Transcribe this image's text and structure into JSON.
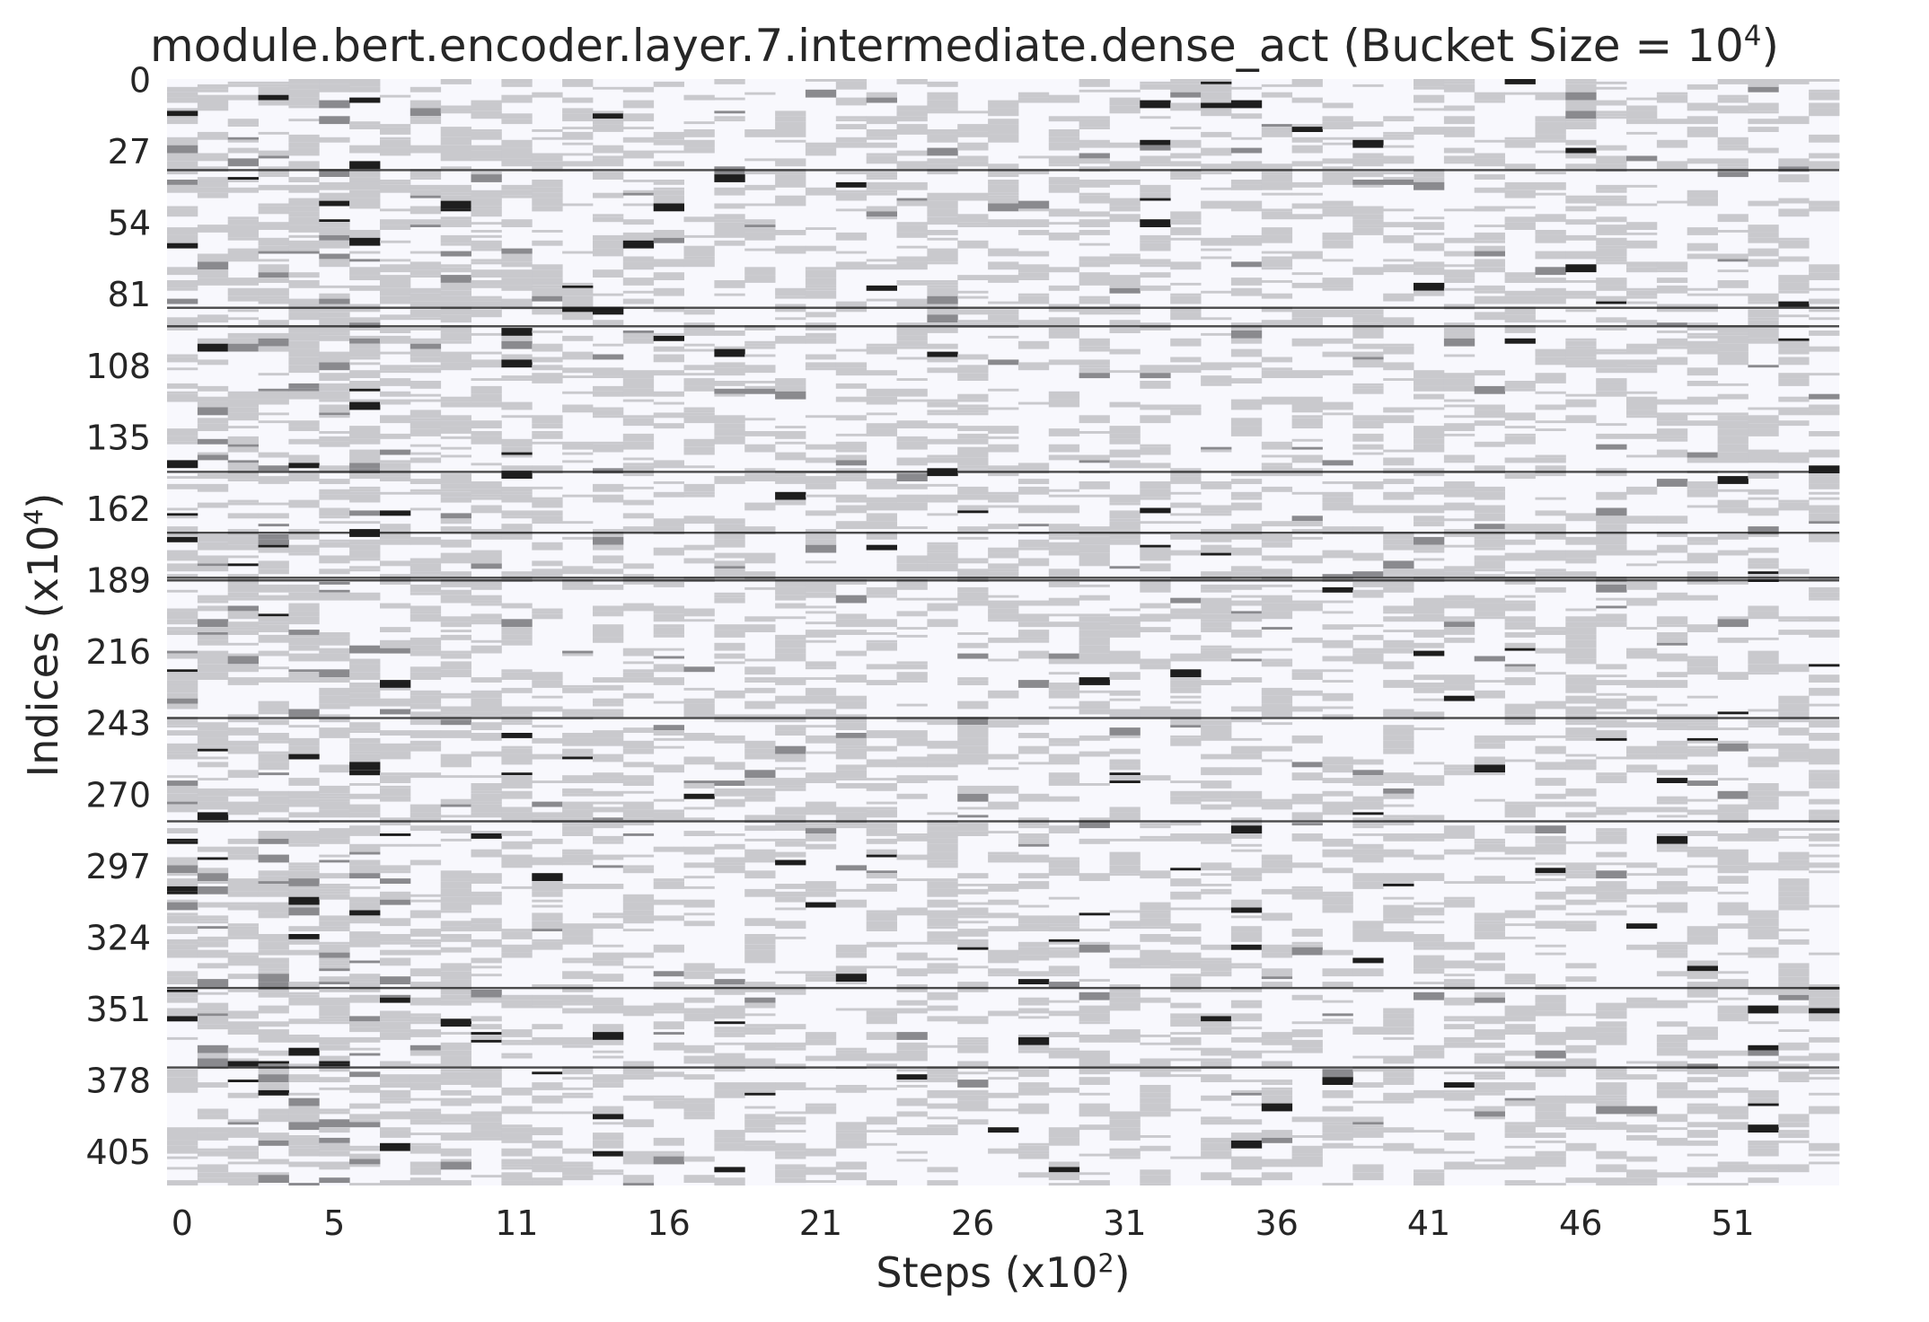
{
  "chart_data": {
    "type": "heatmap",
    "title": {
      "text": "module.bert.encoder.layer.7.intermediate.dense_act (Bucket Size = 10",
      "sup": "4",
      "suffix": ")"
    },
    "xlabel": {
      "text": "Steps (x10",
      "sup": "2",
      "suffix": ")"
    },
    "ylabel": {
      "text": "Indices (x10",
      "sup": "4",
      "suffix": ")"
    },
    "x_ticks": [
      "0",
      "5",
      "11",
      "16",
      "21",
      "26",
      "31",
      "36",
      "41",
      "46",
      "51"
    ],
    "y_ticks": [
      "0",
      "27",
      "54",
      "81",
      "108",
      "135",
      "162",
      "189",
      "216",
      "243",
      "270",
      "297",
      "324",
      "351",
      "378",
      "405"
    ],
    "xlim": [
      0,
      55
    ],
    "ylim": [
      0,
      418
    ],
    "colormap": "white-to-black",
    "colors": {
      "empty_cell": "#f8f8fd",
      "low": "#c9c9cd",
      "mid": "#8a8a8e",
      "high": "#1e1e1e"
    },
    "grid": false,
    "legend": "none",
    "persistent_dark_rows": [
      34,
      86,
      93,
      148,
      171,
      188,
      189,
      241,
      280,
      343,
      373
    ]
  }
}
